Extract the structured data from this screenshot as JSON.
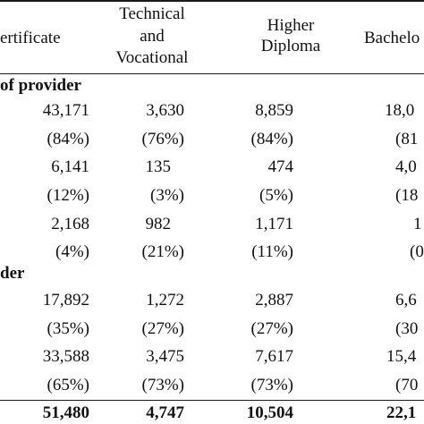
{
  "header": {
    "col1": "ertificate",
    "col2_line1": "Technical",
    "col2_line2": "and",
    "col2_line3": "Vocational",
    "col3_line1": "Higher",
    "col3_line2": "Diploma",
    "col4": "Bachelo"
  },
  "sections": {
    "s1": "of provider",
    "s2": "der"
  },
  "rows": [
    [
      "43,171",
      "3,630",
      "8,859",
      "18,0"
    ],
    [
      "(84%)",
      "(76%)",
      "(84%)",
      "(81"
    ],
    [
      "6,141",
      "135",
      "474",
      "4,0"
    ],
    [
      "(12%)",
      "(3%)",
      "(5%)",
      "(18"
    ],
    [
      "2,168",
      "982",
      "1,171",
      "1"
    ],
    [
      "(4%)",
      "(21%)",
      "(11%)",
      "(0"
    ],
    [
      "17,892",
      "1,272",
      "2,887",
      "6,6"
    ],
    [
      "(35%)",
      "(27%)",
      "(27%)",
      "(30"
    ],
    [
      "33,588",
      "3,475",
      "7,617",
      "15,4"
    ],
    [
      "(65%)",
      "(73%)",
      "(73%)",
      "(70"
    ]
  ],
  "totals": [
    "51,480",
    "4,747",
    "10,504",
    "22,1"
  ],
  "colors": {
    "rule": "#1a1a1a",
    "text": "#111111"
  }
}
